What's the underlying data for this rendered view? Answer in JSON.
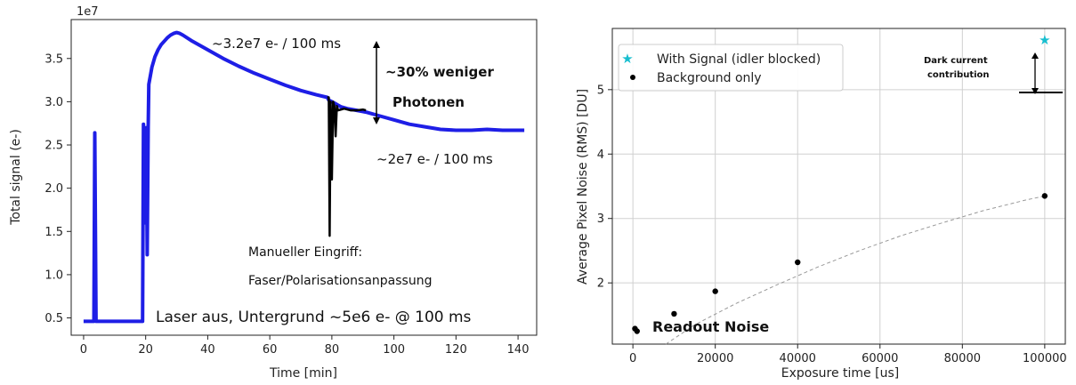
{
  "chart_data": [
    {
      "type": "line",
      "xlabel": "Time [min]",
      "ylabel": "Total signal (e-)",
      "y_offset_label": "1e7",
      "xlim": [
        -4,
        146
      ],
      "ylim": [
        0.3,
        3.95
      ],
      "xticks": [
        0,
        20,
        40,
        60,
        80,
        100,
        120,
        140
      ],
      "yticks": [
        0.5,
        1.0,
        1.5,
        2.0,
        2.5,
        3.0,
        3.5
      ],
      "ytick_labels": [
        "0.5",
        "1.0",
        "1.5",
        "2.0",
        "2.5",
        "3.0",
        "3.5"
      ],
      "grid": false,
      "series": [
        {
          "color": "#1e1ee6",
          "x": [
            0,
            3.3,
            3.6,
            4,
            19,
            19.3,
            19.8,
            20.2,
            20.5,
            20.8,
            21,
            22,
            23,
            24,
            25,
            26,
            27,
            28,
            29,
            30,
            31,
            32,
            35,
            40,
            45,
            50,
            55,
            60,
            65,
            70,
            75,
            78.5,
            79,
            80,
            81,
            82,
            83,
            85,
            88,
            91,
            95,
            100,
            105,
            110,
            115,
            120,
            125,
            130,
            135,
            140,
            142
          ],
          "y": [
            0.46,
            0.46,
            2.64,
            0.46,
            0.46,
            2.74,
            1.6,
            2.7,
            1.23,
            2.7,
            3.2,
            3.4,
            3.52,
            3.6,
            3.66,
            3.7,
            3.74,
            3.77,
            3.79,
            3.8,
            3.79,
            3.77,
            3.7,
            3.6,
            3.5,
            3.41,
            3.33,
            3.26,
            3.19,
            3.13,
            3.08,
            3.05,
            3.02,
            3.0,
            2.98,
            2.96,
            2.94,
            2.92,
            2.9,
            2.88,
            2.84,
            2.79,
            2.74,
            2.71,
            2.68,
            2.67,
            2.67,
            2.68,
            2.67,
            2.67,
            2.67
          ]
        },
        {
          "color": "#000000",
          "x": [
            78.5,
            79,
            79.3,
            79.6,
            80,
            80.4,
            80.8,
            81.2,
            81.6,
            82,
            84,
            86,
            88,
            90,
            91
          ],
          "y": [
            3.05,
            3.05,
            1.45,
            3.0,
            2.1,
            3.0,
            2.95,
            2.6,
            2.95,
            2.9,
            2.92,
            2.9,
            2.9,
            2.91,
            2.9
          ]
        }
      ],
      "annotations": [
        "~3.2e7 e- / 100 ms",
        "~30% weniger",
        "Photonen",
        "~2e7 e- / 100 ms",
        "Manueller Eingriff:",
        "Faser/Polarisationsanpassung",
        "Laser aus, Untergrund ~5e6 e- @ 100 ms"
      ]
    },
    {
      "type": "scatter",
      "xlabel": "Exposure time [us]",
      "ylabel": "Average Pixel Noise (RMS) [DU]",
      "xlim": [
        -5000,
        105000
      ],
      "ylim": [
        1.05,
        5.95
      ],
      "xticks": [
        0,
        20000,
        40000,
        60000,
        80000,
        100000
      ],
      "yticks": [
        2,
        3,
        4,
        5
      ],
      "grid": true,
      "legend_position": "top-left",
      "series": [
        {
          "name": "With Signal (idler blocked)",
          "marker": "star",
          "color": "#17becf",
          "x": [
            100000
          ],
          "y": [
            5.77
          ]
        },
        {
          "name": "Background only",
          "marker": "circle",
          "color": "#000000",
          "x": [
            500,
            1000,
            10000,
            20000,
            40000,
            100000
          ],
          "y": [
            1.29,
            1.25,
            1.52,
            1.87,
            2.32,
            3.35
          ]
        },
        {
          "line_style": "dashed",
          "color": "#999999",
          "x": [
            8000,
            15000,
            25000,
            35000,
            45000,
            55000,
            65000,
            75000,
            85000,
            95000,
            100000
          ],
          "y": [
            1.05,
            1.35,
            1.68,
            1.97,
            2.25,
            2.5,
            2.73,
            2.93,
            3.12,
            3.28,
            3.35
          ]
        }
      ],
      "annotations": [
        "Dark current",
        "contribution",
        "Readout Noise"
      ]
    }
  ]
}
